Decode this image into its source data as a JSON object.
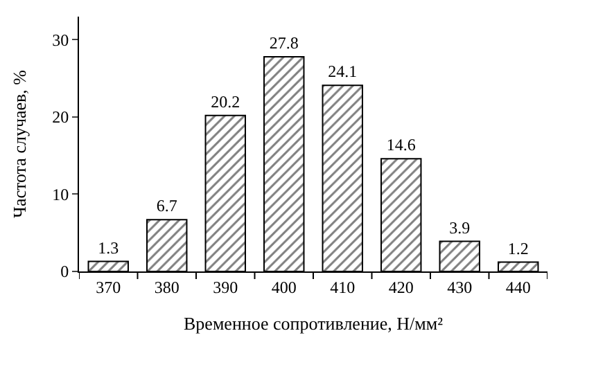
{
  "chart_data": {
    "type": "bar",
    "xlabel": "Временное сопротивление, Н/мм²",
    "ylabel": "Частота случаев, %",
    "categories": [
      "370",
      "380",
      "390",
      "400",
      "410",
      "420",
      "430",
      "440"
    ],
    "values": [
      1.3,
      6.7,
      20.2,
      27.8,
      24.1,
      14.6,
      3.9,
      1.2
    ],
    "color": "#000000",
    "data_labels": true,
    "ylim": [
      0,
      33
    ],
    "yticks": [
      0,
      10,
      20,
      30
    ]
  }
}
